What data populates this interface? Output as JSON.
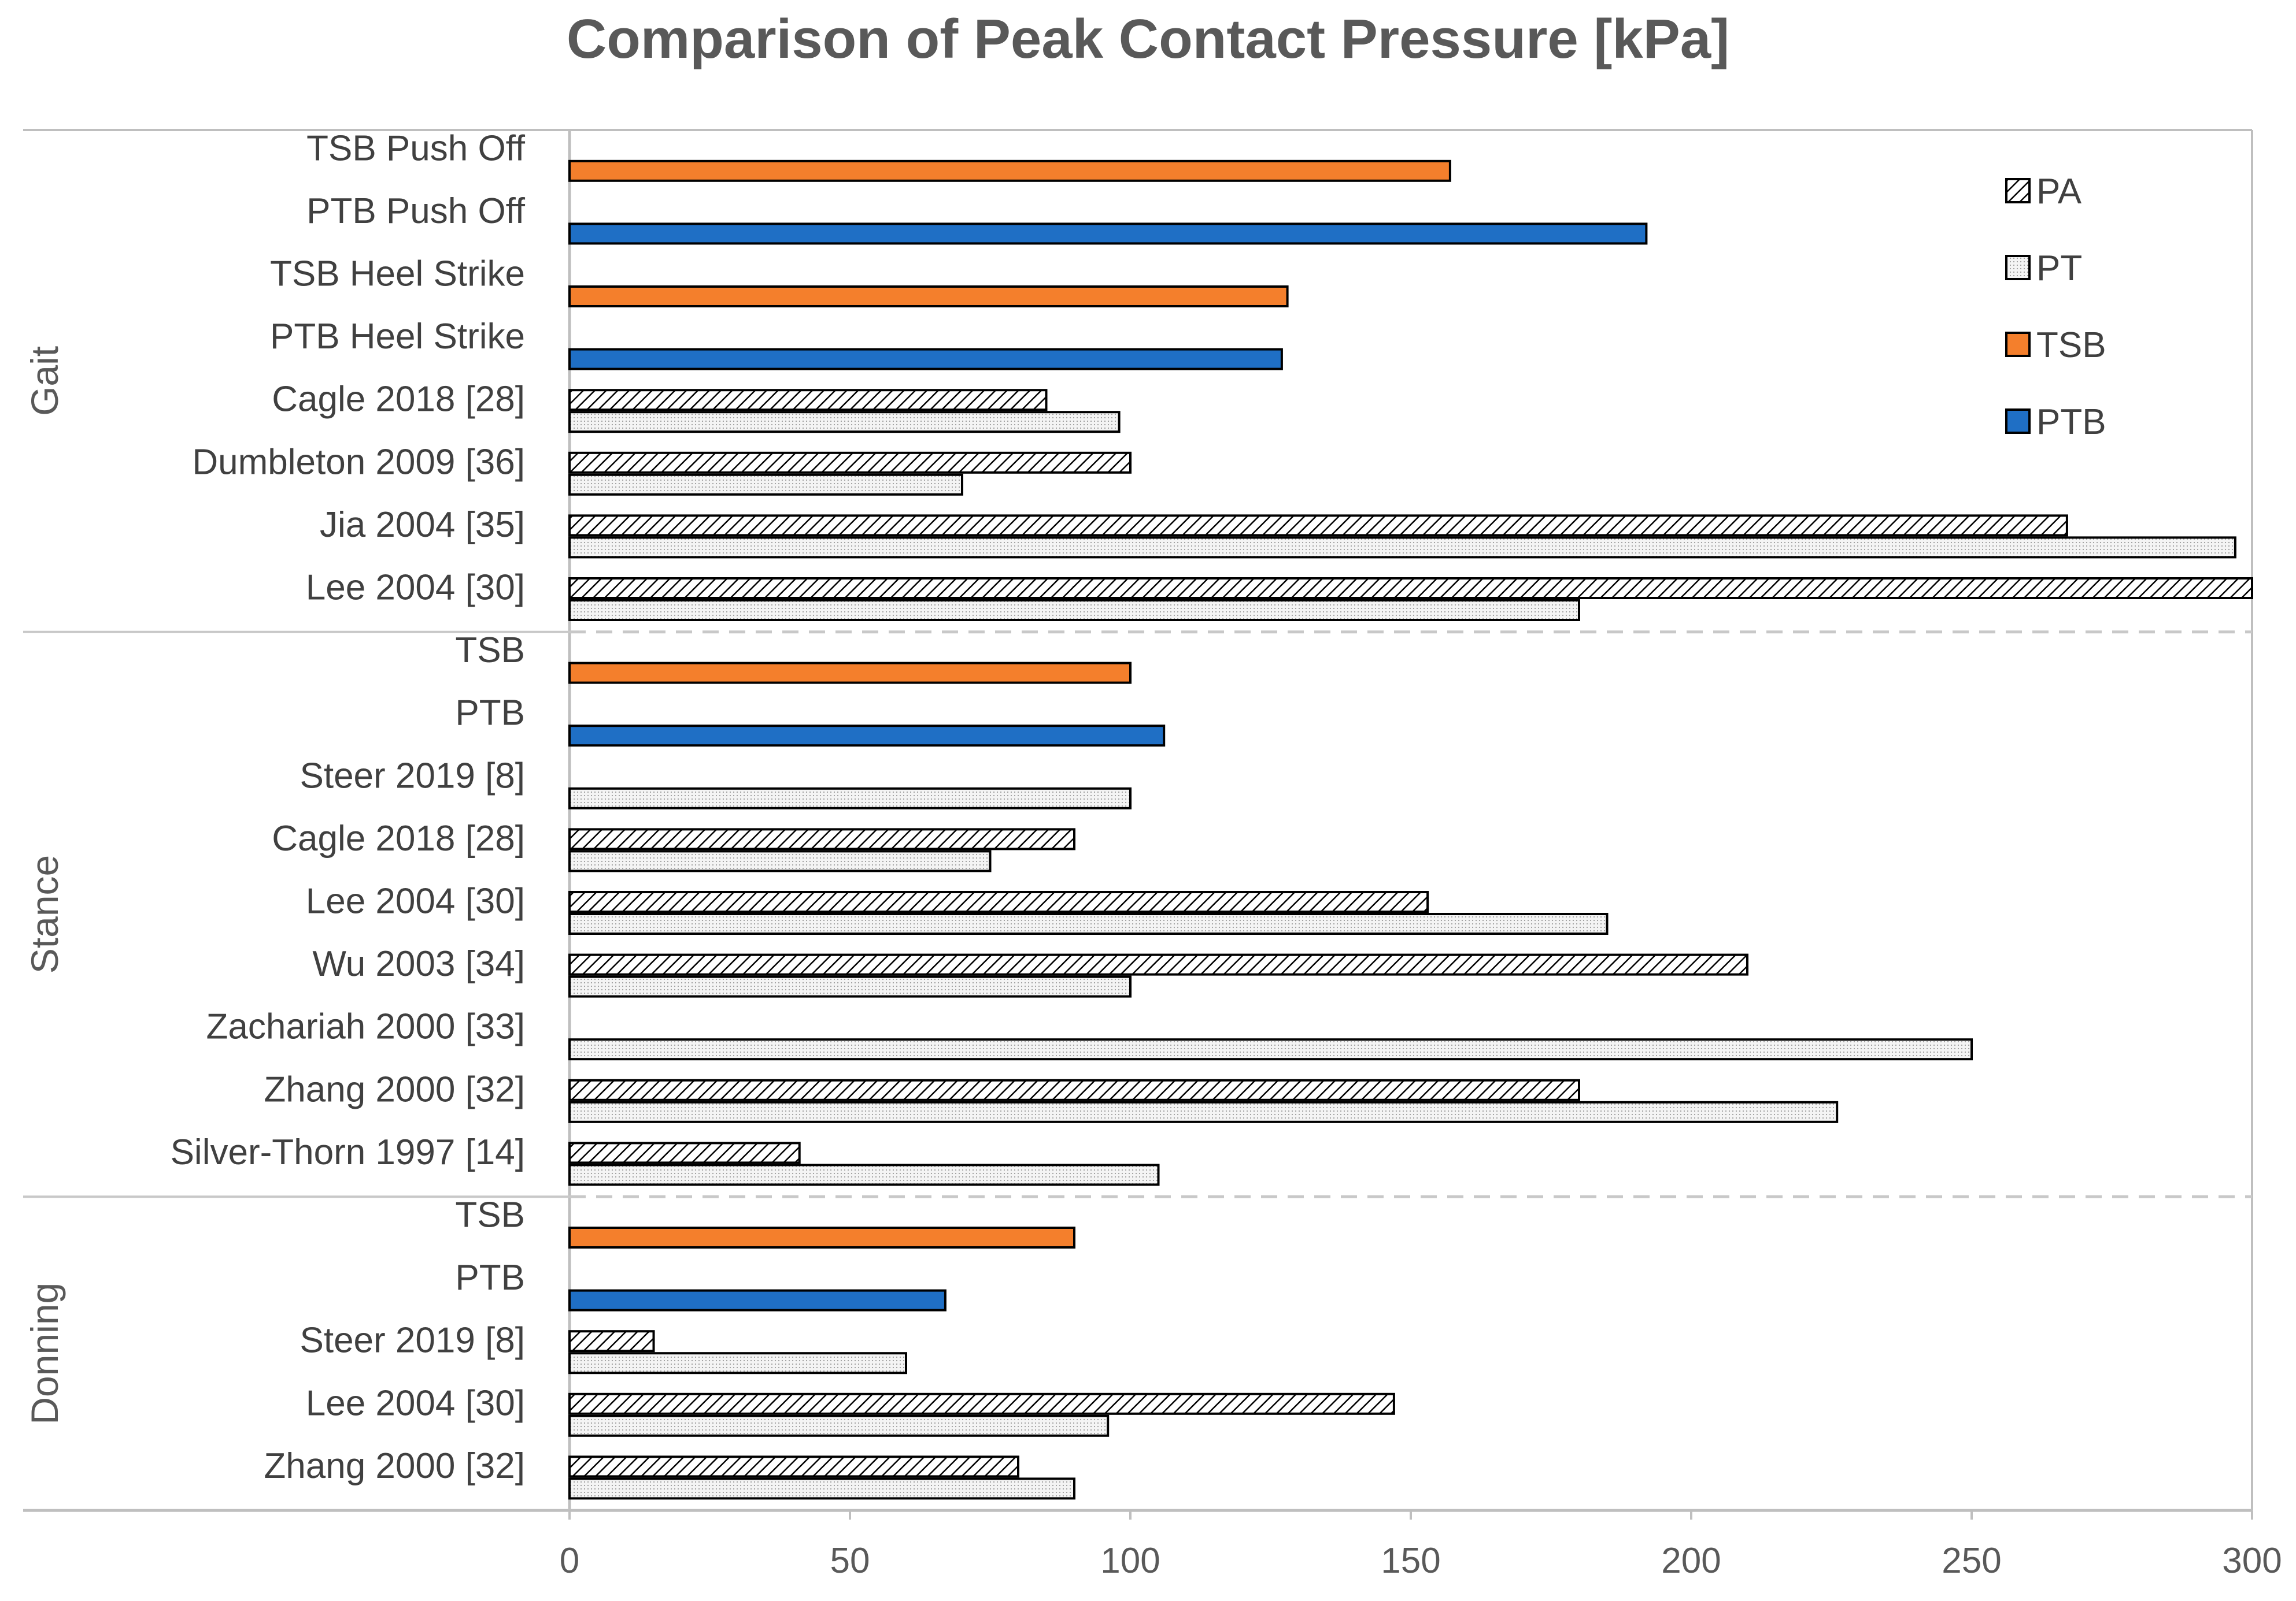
{
  "chart_data": {
    "type": "bar",
    "orientation": "horizontal",
    "title": "Comparison of Peak Contact Pressure [kPa]",
    "xlabel": "",
    "ylabel": "",
    "xlim": [
      0,
      300
    ],
    "xticks": [
      0,
      50,
      100,
      150,
      200,
      250,
      300
    ],
    "grid": false,
    "legend_position": "top-right",
    "series_names": [
      "PA",
      "PT",
      "TSB",
      "PTB"
    ],
    "colors": {
      "PA": "#ffffff",
      "PT": "#f2f2f2",
      "TSB": "#f47f2c",
      "PTB": "#1f6fc5",
      "outline": "#000000",
      "axis": "#bfbfbf",
      "separator": "#c8c8c8"
    },
    "groups": [
      {
        "name": "Gait",
        "rows": [
          {
            "label": "TSB Push Off",
            "TSB": 157
          },
          {
            "label": "PTB Push Off",
            "PTB": 192
          },
          {
            "label": "TSB Heel Strike",
            "TSB": 128
          },
          {
            "label": "PTB Heel Strike",
            "PTB": 127
          },
          {
            "label": "Cagle 2018 [28]",
            "PA": 85,
            "PT": 98
          },
          {
            "label": "Dumbleton 2009 [36]",
            "PA": 100,
            "PT": 70
          },
          {
            "label": "Jia 2004 [35]",
            "PA": 267,
            "PT": 297
          },
          {
            "label": "Lee 2004 [30]",
            "PA": 300,
            "PT": 180
          }
        ]
      },
      {
        "name": "Stance",
        "rows": [
          {
            "label": "TSB",
            "TSB": 100
          },
          {
            "label": "PTB",
            "PTB": 106
          },
          {
            "label": "Steer 2019 [8]",
            "PT": 100
          },
          {
            "label": "Cagle 2018 [28]",
            "PA": 90,
            "PT": 75
          },
          {
            "label": "Lee 2004 [30]",
            "PA": 153,
            "PT": 185
          },
          {
            "label": "Wu 2003 [34]",
            "PA": 210,
            "PT": 100
          },
          {
            "label": "Zachariah 2000 [33]",
            "PT": 250
          },
          {
            "label": "Zhang 2000 [32]",
            "PA": 180,
            "PT": 226
          },
          {
            "label": "Silver-Thorn 1997 [14]",
            "PA": 41,
            "PT": 105
          }
        ]
      },
      {
        "name": "Donning",
        "rows": [
          {
            "label": "TSB",
            "TSB": 90
          },
          {
            "label": "PTB",
            "PTB": 67
          },
          {
            "label": "Steer 2019 [8]",
            "PA": 15,
            "PT": 60
          },
          {
            "label": "Lee 2004 [30]",
            "PA": 147,
            "PT": 96
          },
          {
            "label": "Zhang 2000 [32]",
            "PA": 80,
            "PT": 90
          }
        ]
      }
    ]
  }
}
